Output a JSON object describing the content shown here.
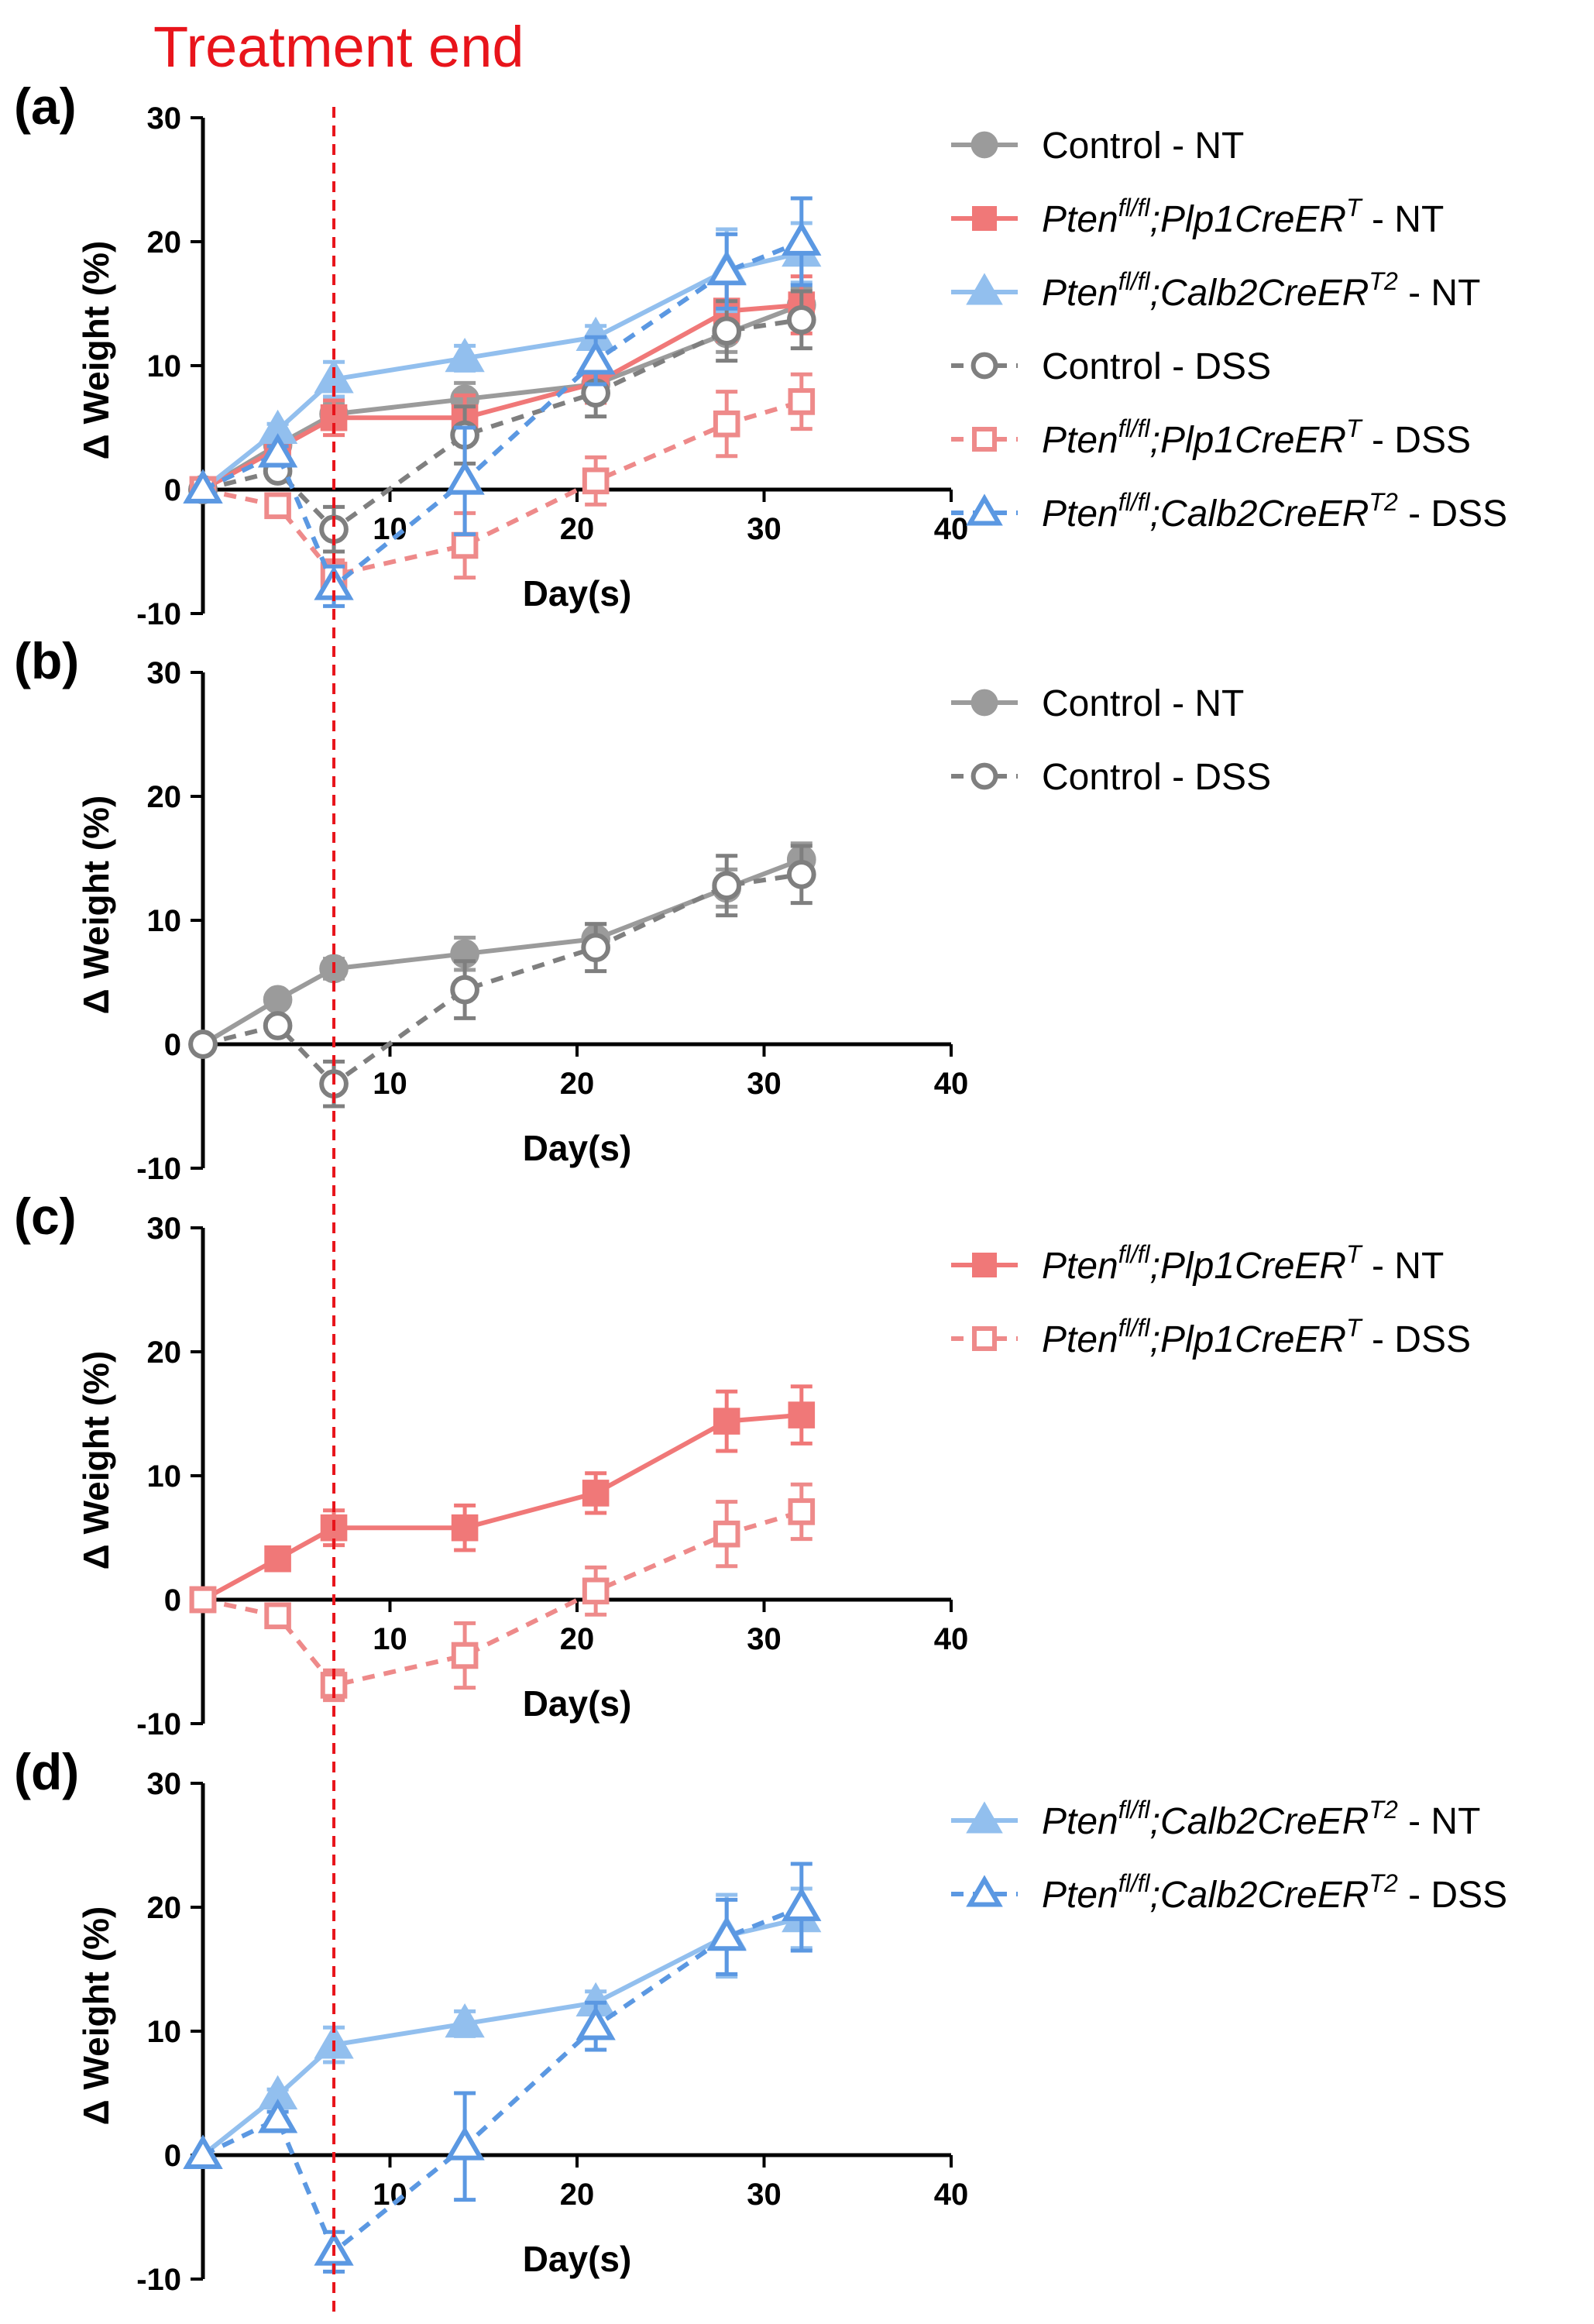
{
  "treatment_label": "Treatment end",
  "treatment_day": 7,
  "treatment_color": "#e8141b",
  "series_styles": {
    "ctrl_nt": {
      "color": "#9b9b9b",
      "marker": "circle",
      "filled": true,
      "dashed": false
    },
    "plp_nt": {
      "color": "#f07878",
      "marker": "square",
      "filled": true,
      "dashed": false
    },
    "calb_nt": {
      "color": "#92bfee",
      "marker": "triangle",
      "filled": true,
      "dashed": false
    },
    "ctrl_dss": {
      "color": "#7f7f7f",
      "marker": "circle",
      "filled": false,
      "dashed": true
    },
    "plp_dss": {
      "color": "#ee8a8a",
      "marker": "square",
      "filled": false,
      "dashed": true
    },
    "calb_dss": {
      "color": "#5b98e2",
      "marker": "triangle",
      "filled": false,
      "dashed": true
    }
  },
  "legend_labels": {
    "ctrl_nt": {
      "pre": "Control - NT",
      "sup": "",
      "mid": "",
      "sup2": "",
      "post": ""
    },
    "plp_nt": {
      "pre": "Pten",
      "sup": "fl/fl",
      "mid": ";Plp1CreER",
      "sup2": "T",
      "post": " - NT"
    },
    "calb_nt": {
      "pre": "Pten",
      "sup": "fl/fl",
      "mid": ";Calb2CreER",
      "sup2": "T2",
      "post": " - NT"
    },
    "ctrl_dss": {
      "pre": "Control - DSS",
      "sup": "",
      "mid": "",
      "sup2": "",
      "post": ""
    },
    "plp_dss": {
      "pre": "Pten",
      "sup": "fl/fl",
      "mid": ";Plp1CreER",
      "sup2": "T",
      "post": " - DSS"
    },
    "calb_dss": {
      "pre": "Pten",
      "sup": "fl/fl",
      "mid": ";Calb2CreER",
      "sup2": "T2",
      "post": " - DSS"
    }
  },
  "chart_data": [
    {
      "type": "line",
      "panel": "(a)",
      "xlabel": "Day(s)",
      "ylabel": "Δ Weight (%)",
      "xlim": [
        0,
        40
      ],
      "ylim": [
        -10,
        30
      ],
      "xticks": [
        10,
        20,
        30,
        40
      ],
      "yticks": [
        -10,
        0,
        10,
        20,
        30
      ],
      "legend": [
        "ctrl_nt",
        "plp_nt",
        "calb_nt",
        "ctrl_dss",
        "plp_dss",
        "calb_dss"
      ],
      "series": [
        {
          "key": "ctrl_nt",
          "x": [
            0,
            4,
            7,
            14,
            21,
            28,
            32
          ],
          "y": [
            0,
            3.6,
            6.1,
            7.3,
            8.5,
            12.6,
            14.9
          ],
          "err": [
            0,
            0.5,
            0.8,
            1.3,
            1.2,
            1.5,
            1.3
          ]
        },
        {
          "key": "plp_nt",
          "x": [
            0,
            4,
            7,
            14,
            21,
            28,
            32
          ],
          "y": [
            0,
            3.3,
            5.8,
            5.8,
            8.6,
            14.4,
            14.9
          ],
          "err": [
            0,
            0.4,
            1.4,
            1.8,
            1.6,
            2.4,
            2.3
          ]
        },
        {
          "key": "calb_nt",
          "x": [
            0,
            4,
            7,
            14,
            21,
            28,
            32
          ],
          "y": [
            0,
            4.8,
            8.9,
            10.6,
            12.3,
            17.7,
            19.1
          ],
          "err": [
            0,
            0.5,
            1.4,
            1.0,
            0.9,
            3.3,
            2.4
          ]
        },
        {
          "key": "ctrl_dss",
          "x": [
            0,
            4,
            7,
            14,
            21,
            28,
            32
          ],
          "y": [
            0,
            1.5,
            -3.2,
            4.4,
            7.8,
            12.8,
            13.7
          ],
          "err": [
            0,
            0.6,
            1.8,
            2.3,
            1.9,
            2.4,
            2.3
          ]
        },
        {
          "key": "plp_dss",
          "x": [
            0,
            4,
            7,
            14,
            21,
            28,
            32
          ],
          "y": [
            0,
            -1.3,
            -6.9,
            -4.5,
            0.7,
            5.3,
            7.1
          ],
          "err": [
            0,
            0.6,
            1.2,
            2.6,
            1.9,
            2.6,
            2.2
          ]
        },
        {
          "key": "calb_dss",
          "x": [
            0,
            4,
            7,
            14,
            21,
            28,
            32
          ],
          "y": [
            0,
            2.9,
            -7.8,
            0.7,
            10.4,
            17.6,
            20.0
          ],
          "err": [
            0,
            0.6,
            1.6,
            4.3,
            1.9,
            3.0,
            3.5
          ]
        }
      ]
    },
    {
      "type": "line",
      "panel": "(b)",
      "xlabel": "Day(s)",
      "ylabel": "Δ Weight (%)",
      "xlim": [
        0,
        40
      ],
      "ylim": [
        -10,
        30
      ],
      "xticks": [
        10,
        20,
        30,
        40
      ],
      "yticks": [
        -10,
        0,
        10,
        20,
        30
      ],
      "legend": [
        "ctrl_nt",
        "ctrl_dss"
      ],
      "series": [
        {
          "key": "ctrl_nt",
          "x": [
            0,
            4,
            7,
            14,
            21,
            28,
            32
          ],
          "y": [
            0,
            3.6,
            6.1,
            7.3,
            8.5,
            12.6,
            14.9
          ],
          "err": [
            0,
            0.5,
            0.8,
            1.3,
            1.2,
            1.5,
            1.3
          ]
        },
        {
          "key": "ctrl_dss",
          "x": [
            0,
            4,
            7,
            14,
            21,
            28,
            32
          ],
          "y": [
            0,
            1.5,
            -3.2,
            4.4,
            7.8,
            12.8,
            13.7
          ],
          "err": [
            0,
            0.6,
            1.8,
            2.3,
            1.9,
            2.4,
            2.3
          ]
        }
      ]
    },
    {
      "type": "line",
      "panel": "(c)",
      "xlabel": "Day(s)",
      "ylabel": "Δ Weight (%)",
      "xlim": [
        0,
        40
      ],
      "ylim": [
        -10,
        30
      ],
      "xticks": [
        10,
        20,
        30,
        40
      ],
      "yticks": [
        -10,
        0,
        10,
        20,
        30
      ],
      "legend": [
        "plp_nt",
        "plp_dss"
      ],
      "series": [
        {
          "key": "plp_nt",
          "x": [
            0,
            4,
            7,
            14,
            21,
            28,
            32
          ],
          "y": [
            0,
            3.3,
            5.8,
            5.8,
            8.6,
            14.4,
            14.9
          ],
          "err": [
            0,
            0.4,
            1.4,
            1.8,
            1.6,
            2.4,
            2.3
          ]
        },
        {
          "key": "plp_dss",
          "x": [
            0,
            4,
            7,
            14,
            21,
            28,
            32
          ],
          "y": [
            0,
            -1.3,
            -6.9,
            -4.5,
            0.7,
            5.3,
            7.1
          ],
          "err": [
            0,
            0.6,
            1.2,
            2.6,
            1.9,
            2.6,
            2.2
          ]
        }
      ]
    },
    {
      "type": "line",
      "panel": "(d)",
      "xlabel": "Day(s)",
      "ylabel": "Δ Weight (%)",
      "xlim": [
        0,
        40
      ],
      "ylim": [
        -10,
        30
      ],
      "xticks": [
        10,
        20,
        30,
        40
      ],
      "yticks": [
        -10,
        0,
        10,
        20,
        30
      ],
      "legend": [
        "calb_nt",
        "calb_dss"
      ],
      "series": [
        {
          "key": "calb_nt",
          "x": [
            0,
            4,
            7,
            14,
            21,
            28,
            32
          ],
          "y": [
            0,
            4.8,
            8.9,
            10.6,
            12.3,
            17.7,
            19.1
          ],
          "err": [
            0,
            0.5,
            1.4,
            1.0,
            0.9,
            3.3,
            2.4
          ]
        },
        {
          "key": "calb_dss",
          "x": [
            0,
            4,
            7,
            14,
            21,
            28,
            32
          ],
          "y": [
            0,
            2.9,
            -7.8,
            0.7,
            10.4,
            17.6,
            20.0
          ],
          "err": [
            0,
            0.6,
            1.6,
            4.3,
            1.9,
            3.0,
            3.5
          ]
        }
      ]
    }
  ]
}
